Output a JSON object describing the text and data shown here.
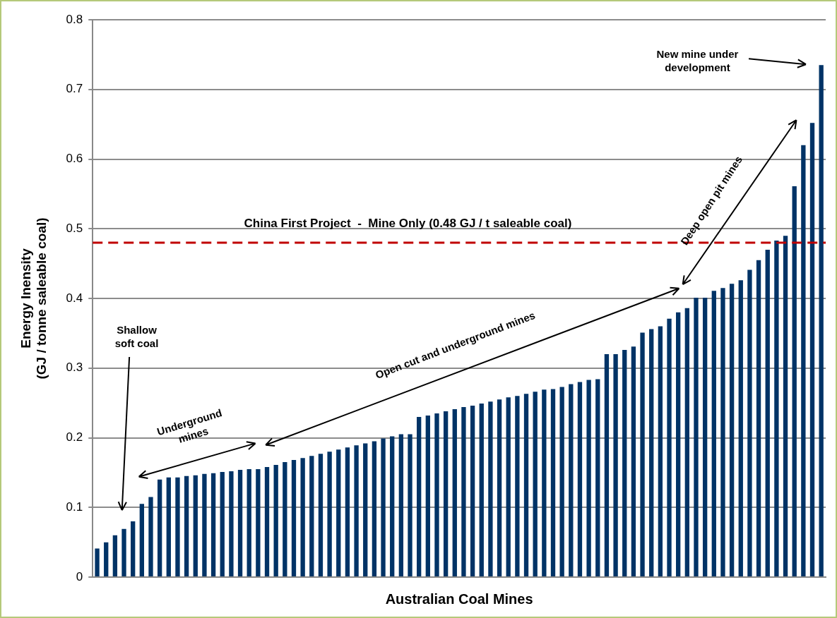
{
  "chart_data": {
    "type": "bar",
    "xlabel": "Australian Coal Mines",
    "ylabel": "Energy Inensity\n(GJ / tonne saleable coal)",
    "categories": [
      null,
      null,
      null,
      null,
      null,
      null,
      null,
      null,
      null,
      null,
      null,
      null,
      null,
      null,
      null,
      null,
      null,
      null,
      null,
      null,
      null,
      null,
      null,
      null,
      null,
      null,
      null,
      null,
      null,
      null,
      null,
      null,
      null,
      null,
      null,
      null,
      null,
      null,
      null,
      null,
      null,
      null,
      null,
      null,
      null,
      null,
      null,
      null,
      null,
      null,
      null,
      null,
      null,
      null,
      null,
      null,
      null,
      null,
      null,
      null,
      null,
      null,
      null,
      null,
      null,
      null,
      null,
      null,
      null,
      null,
      null,
      null,
      null,
      null,
      null,
      null,
      null,
      null,
      null,
      null,
      null,
      null
    ],
    "values": [
      0.041,
      0.05,
      0.06,
      0.069,
      0.08,
      0.105,
      0.115,
      0.14,
      0.143,
      0.143,
      0.145,
      0.146,
      0.148,
      0.149,
      0.151,
      0.152,
      0.154,
      0.155,
      0.155,
      0.158,
      0.161,
      0.165,
      0.168,
      0.171,
      0.174,
      0.177,
      0.18,
      0.183,
      0.186,
      0.189,
      0.192,
      0.195,
      0.199,
      0.202,
      0.205,
      0.205,
      0.23,
      0.232,
      0.235,
      0.238,
      0.241,
      0.244,
      0.246,
      0.249,
      0.252,
      0.255,
      0.258,
      0.26,
      0.263,
      0.266,
      0.269,
      0.27,
      0.273,
      0.277,
      0.28,
      0.283,
      0.284,
      0.32,
      0.32,
      0.326,
      0.331,
      0.351,
      0.356,
      0.36,
      0.371,
      0.38,
      0.386,
      0.401,
      0.401,
      0.411,
      0.415,
      0.421,
      0.426,
      0.441,
      0.455,
      0.47,
      0.483,
      0.49,
      0.561,
      0.62,
      0.652,
      0.735
    ],
    "color": "#003366",
    "ylim": [
      0,
      0.8
    ],
    "yticks": [
      0,
      0.1,
      0.2,
      0.3,
      0.4,
      0.5,
      0.6,
      0.7,
      0.8
    ],
    "grid": "y",
    "legend": false,
    "ref_lines": [
      {
        "axis": "y",
        "value": 0.48,
        "label": "China First Project  -  Mine Only (0.48 GJ / t saleable coal)",
        "color": "#c00000",
        "line_style": "dashed"
      }
    ],
    "annotations": [
      "Shallow\nsoft coal",
      "Underground\nmines",
      "Open cut and underground mines",
      "Deep open pit mines",
      "New mine under\ndevelopment"
    ]
  }
}
